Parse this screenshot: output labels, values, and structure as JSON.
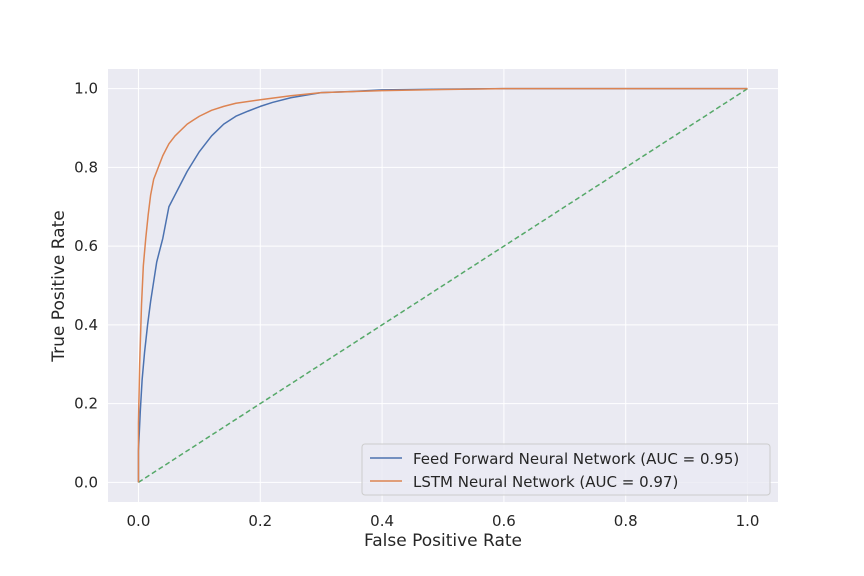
{
  "chart_data": {
    "type": "line",
    "xlabel": "False Positive Rate",
    "ylabel": "True Positive Rate",
    "xlim": [
      -0.05,
      1.05
    ],
    "ylim": [
      -0.05,
      1.05
    ],
    "xticks": [
      0.0,
      0.2,
      0.4,
      0.6,
      0.8,
      1.0
    ],
    "yticks": [
      0.0,
      0.2,
      0.4,
      0.6,
      0.8,
      1.0
    ],
    "xtick_labels": [
      "0.0",
      "0.2",
      "0.4",
      "0.6",
      "0.8",
      "1.0"
    ],
    "ytick_labels": [
      "0.0",
      "0.2",
      "0.4",
      "0.6",
      "0.8",
      "1.0"
    ],
    "grid": true,
    "legend_position": "bottom-right",
    "series": [
      {
        "name": "Feed Forward Neural Network (AUC = 0.95)",
        "color": "#4c72b0",
        "style": "solid",
        "x": [
          0.0,
          0.0,
          0.003,
          0.006,
          0.01,
          0.015,
          0.02,
          0.025,
          0.03,
          0.035,
          0.04,
          0.045,
          0.05,
          0.06,
          0.07,
          0.08,
          0.09,
          0.1,
          0.11,
          0.12,
          0.14,
          0.16,
          0.18,
          0.2,
          0.22,
          0.25,
          0.28,
          0.3,
          0.35,
          0.4,
          0.5,
          0.6,
          0.8,
          1.0
        ],
        "y": [
          0.0,
          0.08,
          0.18,
          0.26,
          0.33,
          0.4,
          0.46,
          0.51,
          0.56,
          0.59,
          0.62,
          0.66,
          0.7,
          0.73,
          0.76,
          0.79,
          0.815,
          0.84,
          0.86,
          0.88,
          0.91,
          0.93,
          0.943,
          0.955,
          0.965,
          0.977,
          0.985,
          0.99,
          0.993,
          0.997,
          0.999,
          1.0,
          1.0,
          1.0
        ]
      },
      {
        "name": "LSTM Neural Network (AUC = 0.97)",
        "color": "#dd8452",
        "style": "solid",
        "x": [
          0.0,
          0.0,
          0.002,
          0.005,
          0.008,
          0.012,
          0.016,
          0.02,
          0.025,
          0.03,
          0.035,
          0.04,
          0.045,
          0.05,
          0.06,
          0.07,
          0.08,
          0.09,
          0.1,
          0.12,
          0.14,
          0.16,
          0.2,
          0.25,
          0.3,
          0.4,
          0.5,
          0.6,
          0.8,
          1.0
        ],
        "y": [
          0.0,
          0.15,
          0.3,
          0.45,
          0.55,
          0.62,
          0.68,
          0.73,
          0.77,
          0.79,
          0.81,
          0.83,
          0.845,
          0.86,
          0.88,
          0.895,
          0.91,
          0.92,
          0.93,
          0.945,
          0.955,
          0.963,
          0.972,
          0.982,
          0.99,
          0.995,
          0.998,
          1.0,
          1.0,
          1.0
        ]
      },
      {
        "name": "",
        "color": "#55a868",
        "style": "dashed",
        "x": [
          0.0,
          1.0
        ],
        "y": [
          0.0,
          1.0
        ]
      }
    ]
  }
}
